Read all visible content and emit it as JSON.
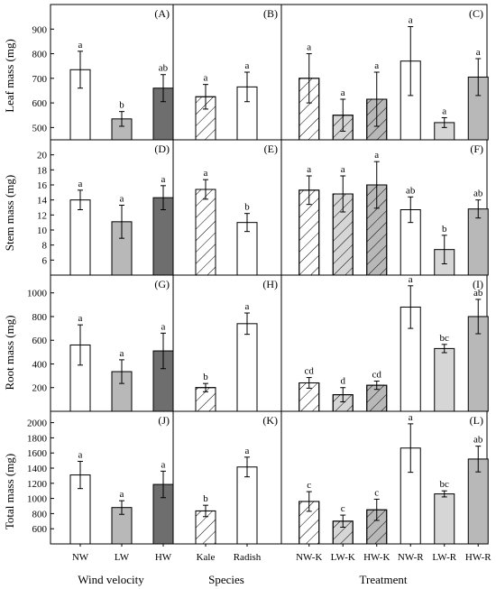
{
  "figure": {
    "row_ylabels": [
      "Leaf mass (mg)",
      "Stem mass (mg)",
      "Root mass (mg)",
      "Total mass (mg)"
    ],
    "col_xlabels": [
      "Wind velocity",
      "Species",
      "Treatment"
    ]
  },
  "colors": {
    "white": "#ffffff",
    "light_gray": "#d6d6d6",
    "mid_gray": "#b8b8b8",
    "dark_gray": "#6e6e6e",
    "axis": "#000000"
  },
  "chart_data": [
    {
      "panel": "(A)",
      "type": "bar",
      "ylabel": "Leaf mass (mg)",
      "ylim": [
        450,
        1000
      ],
      "yticks": [
        500,
        600,
        700,
        800,
        900
      ],
      "categories": [
        "NW",
        "LW",
        "HW"
      ],
      "values": [
        735,
        535,
        660
      ],
      "errors": [
        75,
        30,
        55
      ],
      "letters": [
        "a",
        "b",
        "ab"
      ],
      "fills": [
        "white",
        "mid_gray",
        "dark_gray"
      ],
      "hatch": [
        false,
        false,
        false
      ]
    },
    {
      "panel": "(B)",
      "type": "bar",
      "ylim": [
        450,
        1000
      ],
      "categories": [
        "Kale",
        "Radish"
      ],
      "values": [
        625,
        665
      ],
      "errors": [
        50,
        60
      ],
      "letters": [
        "a",
        "a"
      ],
      "fills": [
        "white",
        "white"
      ],
      "hatch": [
        true,
        false
      ]
    },
    {
      "panel": "(C)",
      "type": "bar",
      "ylim": [
        450,
        1000
      ],
      "categories": [
        "NW-K",
        "LW-K",
        "HW-K",
        "NW-R",
        "LW-R",
        "HW-R"
      ],
      "values": [
        700,
        550,
        615,
        770,
        520,
        705
      ],
      "errors": [
        100,
        65,
        110,
        140,
        20,
        75
      ],
      "letters": [
        "a",
        "a",
        "a",
        "a",
        "a",
        "a"
      ],
      "fills": [
        "white",
        "light_gray",
        "mid_gray",
        "white",
        "light_gray",
        "mid_gray"
      ],
      "hatch": [
        true,
        true,
        true,
        false,
        false,
        false
      ]
    },
    {
      "panel": "(D)",
      "type": "bar",
      "ylabel": "Stem mass (mg)",
      "ylim": [
        4,
        22
      ],
      "yticks": [
        6,
        8,
        10,
        12,
        14,
        16,
        18,
        20
      ],
      "categories": [
        "NW",
        "LW",
        "HW"
      ],
      "values": [
        14,
        11.1,
        14.3
      ],
      "errors": [
        1.3,
        2.2,
        1.6
      ],
      "letters": [
        "a",
        "a",
        "a"
      ],
      "fills": [
        "white",
        "mid_gray",
        "dark_gray"
      ],
      "hatch": [
        false,
        false,
        false
      ]
    },
    {
      "panel": "(E)",
      "type": "bar",
      "ylim": [
        4,
        22
      ],
      "categories": [
        "Kale",
        "Radish"
      ],
      "values": [
        15.4,
        11
      ],
      "errors": [
        1.3,
        1.2
      ],
      "letters": [
        "a",
        "b"
      ],
      "fills": [
        "white",
        "white"
      ],
      "hatch": [
        true,
        false
      ]
    },
    {
      "panel": "(F)",
      "type": "bar",
      "ylim": [
        4,
        22
      ],
      "categories": [
        "NW-K",
        "LW-K",
        "HW-K",
        "NW-R",
        "LW-R",
        "HW-R"
      ],
      "values": [
        15.3,
        14.8,
        16,
        12.7,
        7.4,
        12.8
      ],
      "errors": [
        1.9,
        2.4,
        3.1,
        1.7,
        1.9,
        1.2
      ],
      "letters": [
        "a",
        "a",
        "a",
        "ab",
        "b",
        "ab"
      ],
      "fills": [
        "white",
        "light_gray",
        "mid_gray",
        "white",
        "light_gray",
        "mid_gray"
      ],
      "hatch": [
        true,
        true,
        true,
        false,
        false,
        false
      ]
    },
    {
      "panel": "(G)",
      "type": "bar",
      "ylabel": "Root mass (mg)",
      "ylim": [
        0,
        1150
      ],
      "yticks": [
        200,
        400,
        600,
        800,
        1000
      ],
      "categories": [
        "NW",
        "LW",
        "HW"
      ],
      "values": [
        560,
        335,
        510
      ],
      "errors": [
        170,
        100,
        150
      ],
      "letters": [
        "a",
        "a",
        "a"
      ],
      "fills": [
        "white",
        "mid_gray",
        "dark_gray"
      ],
      "hatch": [
        false,
        false,
        false
      ]
    },
    {
      "panel": "(H)",
      "type": "bar",
      "ylim": [
        0,
        1150
      ],
      "categories": [
        "Kale",
        "Radish"
      ],
      "values": [
        200,
        740
      ],
      "errors": [
        35,
        90
      ],
      "letters": [
        "b",
        "a"
      ],
      "fills": [
        "white",
        "white"
      ],
      "hatch": [
        true,
        false
      ]
    },
    {
      "panel": "(I)",
      "type": "bar",
      "ylim": [
        0,
        1150
      ],
      "categories": [
        "NW-K",
        "LW-K",
        "HW-K",
        "NW-R",
        "LW-R",
        "HW-R"
      ],
      "values": [
        240,
        140,
        220,
        880,
        530,
        800
      ],
      "errors": [
        45,
        60,
        35,
        180,
        35,
        145
      ],
      "letters": [
        "cd",
        "d",
        "cd",
        "a",
        "bc",
        "ab"
      ],
      "fills": [
        "white",
        "light_gray",
        "mid_gray",
        "white",
        "light_gray",
        "mid_gray"
      ],
      "hatch": [
        true,
        true,
        true,
        false,
        false,
        false
      ]
    },
    {
      "panel": "(J)",
      "type": "bar",
      "ylabel": "Total mass (mg)",
      "ylim": [
        400,
        2150
      ],
      "yticks": [
        600,
        800,
        1000,
        1200,
        1400,
        1600,
        1800,
        2000
      ],
      "categories": [
        "NW",
        "LW",
        "HW"
      ],
      "values": [
        1310,
        880,
        1185
      ],
      "errors": [
        180,
        90,
        175
      ],
      "letters": [
        "a",
        "a",
        "a"
      ],
      "fills": [
        "white",
        "mid_gray",
        "dark_gray"
      ],
      "hatch": [
        false,
        false,
        false
      ]
    },
    {
      "panel": "(K)",
      "type": "bar",
      "ylim": [
        400,
        2150
      ],
      "categories": [
        "Kale",
        "Radish"
      ],
      "values": [
        835,
        1415
      ],
      "errors": [
        75,
        130
      ],
      "letters": [
        "b",
        "a"
      ],
      "fills": [
        "white",
        "white"
      ],
      "hatch": [
        true,
        false
      ]
    },
    {
      "panel": "(L)",
      "type": "bar",
      "ylim": [
        400,
        2150
      ],
      "categories": [
        "NW-K",
        "LW-K",
        "HW-K",
        "NW-R",
        "LW-R",
        "HW-R"
      ],
      "values": [
        960,
        700,
        850,
        1665,
        1060,
        1520
      ],
      "errors": [
        130,
        80,
        140,
        320,
        40,
        170
      ],
      "letters": [
        "c",
        "c",
        "c",
        "a",
        "bc",
        "ab"
      ],
      "fills": [
        "white",
        "light_gray",
        "mid_gray",
        "white",
        "light_gray",
        "mid_gray"
      ],
      "hatch": [
        true,
        true,
        true,
        false,
        false,
        false
      ]
    }
  ]
}
